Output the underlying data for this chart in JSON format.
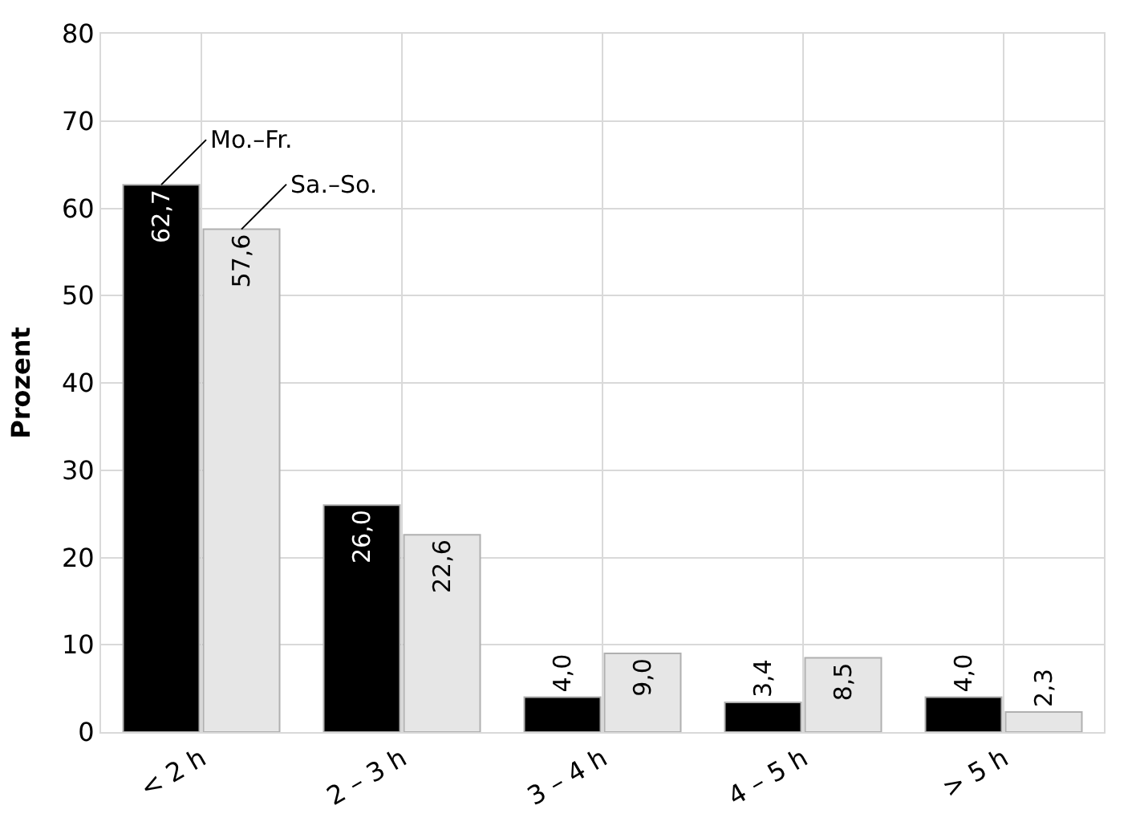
{
  "chart_data": {
    "type": "bar",
    "ylabel": "Prozent",
    "categories": [
      "< 2 h",
      "2 – 3 h",
      "3 – 4 h",
      "4 – 5 h",
      "> 5 h"
    ],
    "series": [
      {
        "name": "Mo.–Fr.",
        "color": "#000000",
        "values": [
          62.7,
          26.0,
          4.0,
          3.4,
          4.0
        ],
        "value_labels": [
          "62,7",
          "26,0",
          "4,0",
          "3,4",
          "4,0"
        ]
      },
      {
        "name": "Sa.–So.",
        "color": "#e6e6e6",
        "values": [
          57.6,
          22.6,
          9.0,
          8.5,
          2.3
        ],
        "value_labels": [
          "57,6",
          "22,6",
          "9,0",
          "8,5",
          "2,3"
        ]
      }
    ],
    "ylim": [
      0,
      80
    ],
    "yticks": [
      0,
      10,
      20,
      30,
      40,
      50,
      60,
      70,
      80
    ],
    "grid": true,
    "legend": false
  }
}
